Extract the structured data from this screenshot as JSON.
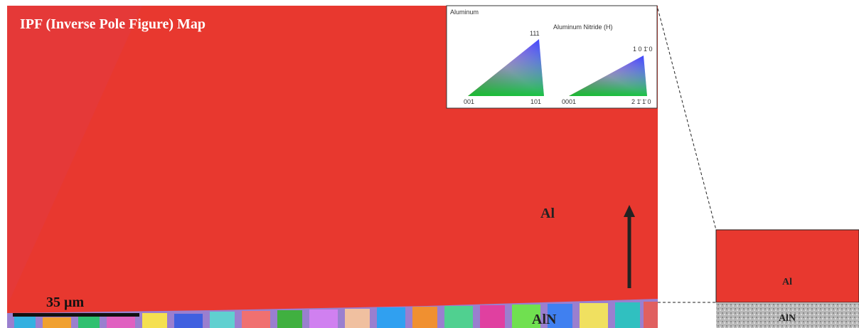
{
  "figure": {
    "title": "IPF (Inverse Pole Figure) Map",
    "legend": {
      "left_label": "Aluminum",
      "left_corners": [
        "111",
        "001",
        "101"
      ],
      "right_label": "Aluminum Nitride (H)",
      "right_corners": [
        "1 0 1̄ 0",
        "0001",
        "2 1̄ 1̄ 0"
      ]
    },
    "scale_bar": "35 µm",
    "main_labels": [
      "Al",
      "AlN"
    ],
    "inset_labels": [
      "Al",
      "AlN"
    ]
  }
}
